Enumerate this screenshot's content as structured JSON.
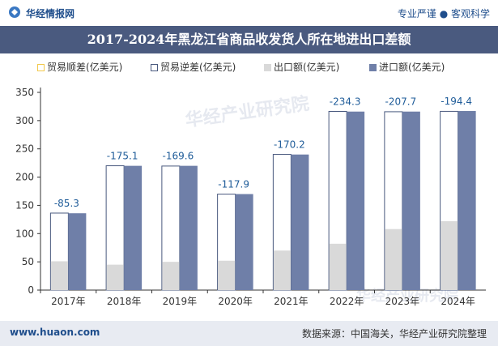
{
  "header": {
    "site_name": "华经情报网",
    "tagline": "专业严谨 ● 客观科学"
  },
  "title": "2017-2024年黑龙江省商品收发货人所在地进出口差额",
  "legend": [
    {
      "label": "贸易顺差(亿美元)",
      "color": "#f2c94c",
      "style": "outline"
    },
    {
      "label": "贸易逆差(亿美元)",
      "color": "#4a5a7f",
      "style": "outline"
    },
    {
      "label": "出口额(亿美元)",
      "color": "#d9d9d9",
      "style": "fill"
    },
    {
      "label": "进口额(亿美元)",
      "color": "#6f7fa8",
      "style": "fill"
    }
  ],
  "watermark": "华经产业研究院",
  "footer": {
    "website": "www.huaon.com",
    "source": "数据来源：中国海关，华经产业研究院整理"
  },
  "chart_data": {
    "type": "bar",
    "categories": [
      "2017年",
      "2018年",
      "2019年",
      "2020年",
      "2021年",
      "2022年",
      "2023年",
      "2024年"
    ],
    "series": [
      {
        "name": "贸易逆差(亿美元)",
        "values": [
          -85.3,
          -175.1,
          -169.6,
          -117.9,
          -170.2,
          -234.3,
          -207.7,
          -194.4
        ],
        "color": "#ffffff"
      },
      {
        "name": "出口额(亿美元)",
        "values": [
          51,
          45,
          50,
          52,
          70,
          82,
          108,
          122
        ],
        "color": "#d9d9d9"
      },
      {
        "name": "进口额(亿美元)",
        "values": [
          136,
          220,
          220,
          170,
          240,
          316,
          316,
          317
        ],
        "color": "#6f7fa8"
      }
    ],
    "data_labels": [
      "-85.3",
      "-175.1",
      "-169.6",
      "-117.9",
      "-170.2",
      "-234.3",
      "-207.7",
      "-194.4"
    ],
    "ylim": [
      0,
      350
    ],
    "yticks": [
      0,
      50,
      100,
      150,
      200,
      250,
      300,
      350
    ],
    "grid": false,
    "legend_position": "top"
  }
}
